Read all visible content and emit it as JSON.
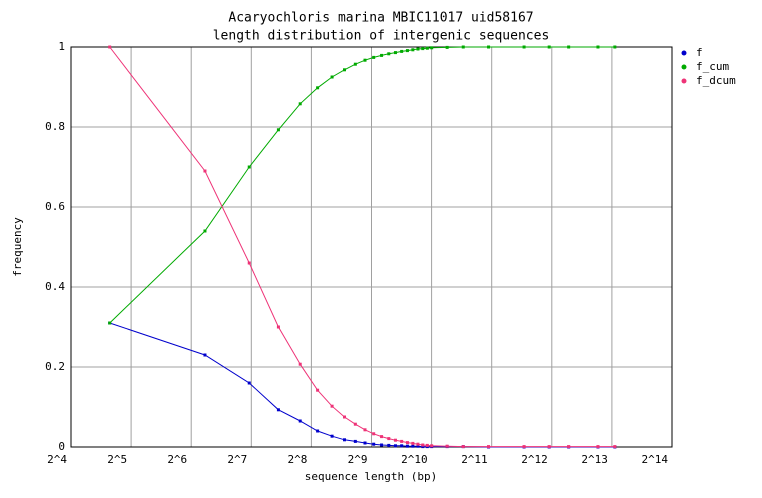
{
  "chart_data": {
    "type": "line",
    "title": "Acaryochloris marina MBIC11017 uid58167",
    "subtitle": "length distribution of intergenic sequences",
    "x_label": "sequence length (bp)",
    "y_label": "frequency",
    "x": [
      25,
      75,
      125,
      175,
      225,
      275,
      325,
      375,
      425,
      475,
      525,
      575,
      625,
      675,
      725,
      775,
      825,
      875,
      925,
      975,
      1025,
      1225,
      1475,
      1975,
      2975,
      3975,
      4975,
      6975,
      8475
    ],
    "series": [
      {
        "name": "f",
        "color": "#0000cc",
        "values": [
          0.31,
          0.23,
          0.16,
          0.093,
          0.065,
          0.04,
          0.027,
          0.018,
          0.014,
          0.01,
          0.007,
          0.005,
          0.004,
          0.003,
          0.003,
          0.002,
          0.002,
          0.002,
          0.001,
          0.001,
          0.001,
          0.001,
          0.001,
          0,
          0,
          0,
          0,
          0,
          0
        ]
      },
      {
        "name": "f_cum",
        "color": "#00aa00",
        "values": [
          0.31,
          0.54,
          0.7,
          0.793,
          0.858,
          0.898,
          0.925,
          0.943,
          0.957,
          0.967,
          0.974,
          0.979,
          0.983,
          0.986,
          0.989,
          0.991,
          0.993,
          0.995,
          0.996,
          0.997,
          0.998,
          0.999,
          1,
          1,
          1,
          1,
          1,
          1,
          1
        ]
      },
      {
        "name": "f_dcum",
        "color": "#ee3377",
        "values": [
          1,
          0.69,
          0.46,
          0.3,
          0.207,
          0.142,
          0.102,
          0.075,
          0.057,
          0.043,
          0.033,
          0.026,
          0.021,
          0.017,
          0.014,
          0.011,
          0.009,
          0.007,
          0.005,
          0.004,
          0.003,
          0.002,
          0.001,
          0.001,
          0.001,
          0.001,
          0.001,
          0.001,
          0.001
        ]
      }
    ],
    "xlim": [
      16,
      16384
    ],
    "x_log_base": 2,
    "xticks": [
      {
        "value": 16,
        "label": "2^4"
      },
      {
        "value": 32,
        "label": "2^5"
      },
      {
        "value": 64,
        "label": "2^6"
      },
      {
        "value": 128,
        "label": "2^7"
      },
      {
        "value": 256,
        "label": "2^8"
      },
      {
        "value": 512,
        "label": "2^9"
      },
      {
        "value": 1024,
        "label": "2^10"
      },
      {
        "value": 2048,
        "label": "2^11"
      },
      {
        "value": 4096,
        "label": "2^12"
      },
      {
        "value": 8192,
        "label": "2^13"
      },
      {
        "value": 16384,
        "label": "2^14"
      }
    ],
    "ylim": [
      0,
      1
    ],
    "yticks": [
      0,
      0.2,
      0.4,
      0.6,
      0.8,
      1
    ],
    "grid": true,
    "legend": "outside-top-right"
  }
}
